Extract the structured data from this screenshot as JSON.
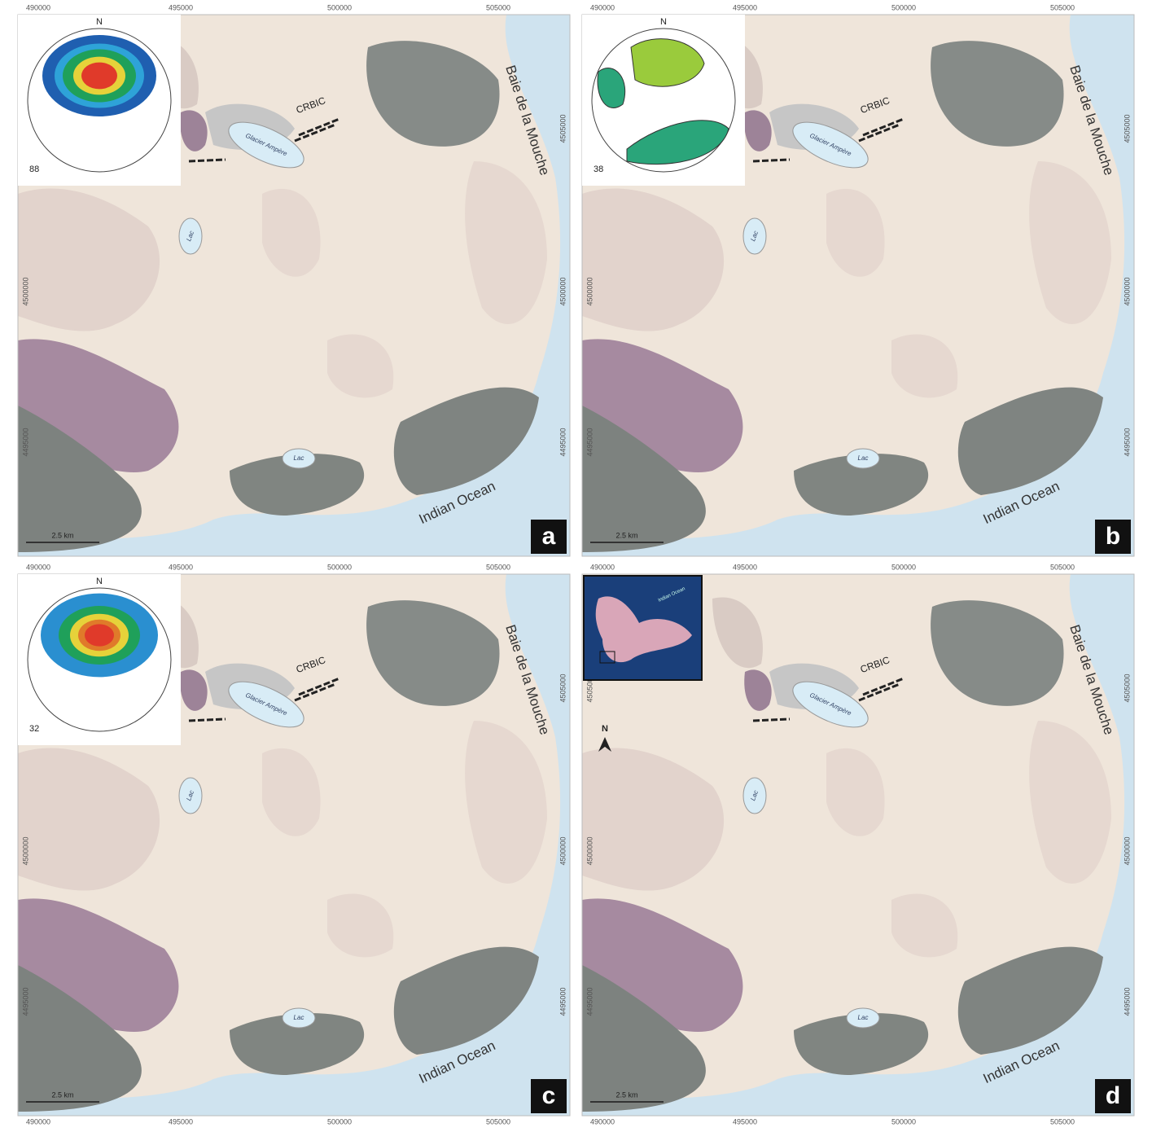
{
  "axes": {
    "x_labels": [
      "490000",
      "495000",
      "500000",
      "505000"
    ],
    "y_labels": [
      "4505000",
      "4500000",
      "4495000"
    ]
  },
  "places": {
    "coast": "Baie de la Mouche",
    "ocean": "Indian Ocean",
    "complex": "CRBIC",
    "lake": "Lac",
    "glacier": "Glacier Ampère"
  },
  "scale_bar": "2.5 km",
  "panels": [
    {
      "letter": "a",
      "stereonet": {
        "north": "N",
        "count": "88"
      }
    },
    {
      "letter": "b",
      "stereonet": {
        "north": "N",
        "count": "38"
      }
    },
    {
      "letter": "c",
      "stereonet": {
        "north": "N",
        "count": "32"
      }
    },
    {
      "letter": "d",
      "inset": {
        "label": "Indian Ocean",
        "north": "N"
      }
    }
  ]
}
